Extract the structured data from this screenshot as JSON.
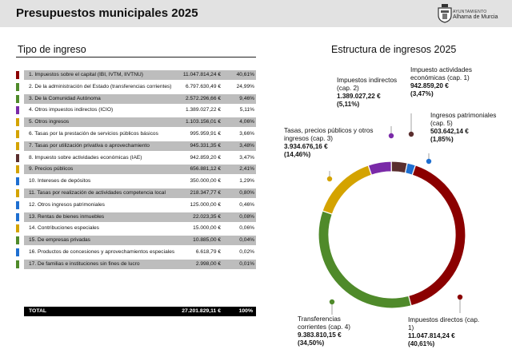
{
  "header": {
    "title": "Presupuestos municipales 2025",
    "org_small": "AYUNTAMIENTO",
    "org_name": "Alhama de Murcia"
  },
  "table": {
    "title": "Tipo de ingreso",
    "rows": [
      {
        "label": "1. Impuestos sobre el capital (IBI, IVTM, IIVTNU)",
        "amount": "11.047.814,24 €",
        "pct": "40,61%",
        "color": "#8b0000"
      },
      {
        "label": "2. De la administración del Estado (transferencias corrientes)",
        "amount": "6.797.630,49 €",
        "pct": "24,99%",
        "color": "#4f8a2a"
      },
      {
        "label": "3. De la Comunidad Autónoma",
        "amount": "2.572.296,66 €",
        "pct": "9,46%",
        "color": "#4f8a2a"
      },
      {
        "label": "4. Otros impuestos indirectos (ICIO)",
        "amount": "1.389.027,22 €",
        "pct": "5,11%",
        "color": "#7a2aa8"
      },
      {
        "label": "5. Otros ingresos",
        "amount": "1.103.156,01 €",
        "pct": "4,06%",
        "color": "#d4a300"
      },
      {
        "label": "6. Tasas por la prestación de servicios públicos básicos",
        "amount": "995.959,91 €",
        "pct": "3,66%",
        "color": "#d4a300"
      },
      {
        "label": "7. Tasas por utilización privativa o aprovechamiento",
        "amount": "945.331,35 €",
        "pct": "3,48%",
        "color": "#d4a300"
      },
      {
        "label": "8. Impuesto sobre actividades económicas (IAE)",
        "amount": "942.859,20 €",
        "pct": "3,47%",
        "color": "#5a2e2e"
      },
      {
        "label": "9. Precios públicos",
        "amount": "656.881,12 €",
        "pct": "2,41%",
        "color": "#d4a300"
      },
      {
        "label": "10. Intereses de depósitos",
        "amount": "350.000,00 €",
        "pct": "1,29%",
        "color": "#1e6fd1"
      },
      {
        "label": "11. Tasas por realización de actividades competencia local",
        "amount": "218.347,77 €",
        "pct": "0,80%",
        "color": "#d4a300"
      },
      {
        "label": "12. Otros ingresos patrimoniales",
        "amount": "125.000,00 €",
        "pct": "0,46%",
        "color": "#1e6fd1"
      },
      {
        "label": "13. Rentas de bienes inmuebles",
        "amount": "22.023,35 €",
        "pct": "0,08%",
        "color": "#1e6fd1"
      },
      {
        "label": "14. Contribuciones especiales",
        "amount": "15.000,00 €",
        "pct": "0,06%",
        "color": "#d4a300"
      },
      {
        "label": "15. De empresas privadas",
        "amount": "10.885,00 €",
        "pct": "0,04%",
        "color": "#4f8a2a"
      },
      {
        "label": "16. Productos de concesiones y aprovechamientos especiales",
        "amount": "6.618,79 €",
        "pct": "0,02%",
        "color": "#1e6fd1"
      },
      {
        "label": "17. De familias e instituciones sin fines de lucro",
        "amount": "2.998,00 €",
        "pct": "0,01%",
        "color": "#4f8a2a"
      }
    ],
    "total": {
      "label": "TOTAL",
      "amount": "27.201.829,11 €",
      "pct": "100%"
    }
  },
  "chart_data": {
    "type": "pie",
    "title": "Estructura de ingresos 2025",
    "donut": true,
    "unit": "€",
    "slices": [
      {
        "name": "Impuestos directos (cap. 1)",
        "value": 11047814.24,
        "value_label": "11.047.814,24 €",
        "pct": 40.61,
        "pct_label": "(40,61%)",
        "color": "#8b0000"
      },
      {
        "name": "Transferencias corrientes (cap. 4)",
        "value": 9383810.15,
        "value_label": "9.383.810,15 €",
        "pct": 34.5,
        "pct_label": "(34,50%)",
        "color": "#4f8a2a"
      },
      {
        "name": "Tasas, precios públicos y otros ingresos (cap. 3)",
        "value": 3934676.16,
        "value_label": "3.934.676,16 €",
        "pct": 14.46,
        "pct_label": "(14,46%)",
        "color": "#d4a300"
      },
      {
        "name": "Impuestos indirectos (cap. 2)",
        "value": 1389027.22,
        "value_label": "1.389.027,22 €",
        "pct": 5.11,
        "pct_label": "(5,11%)",
        "color": "#7a2aa8"
      },
      {
        "name": "Impuesto actividades económicas (cap. 1)",
        "value": 942859.2,
        "value_label": "942.859,20 €",
        "pct": 3.47,
        "pct_label": "(3,47%)",
        "color": "#5a2e2e"
      },
      {
        "name": "Ingresos patrimoniales (cap. 5)",
        "value": 503642.14,
        "value_label": "503.642,14 €",
        "pct": 1.85,
        "pct_label": "(1,85%)",
        "color": "#1e6fd1"
      }
    ]
  }
}
